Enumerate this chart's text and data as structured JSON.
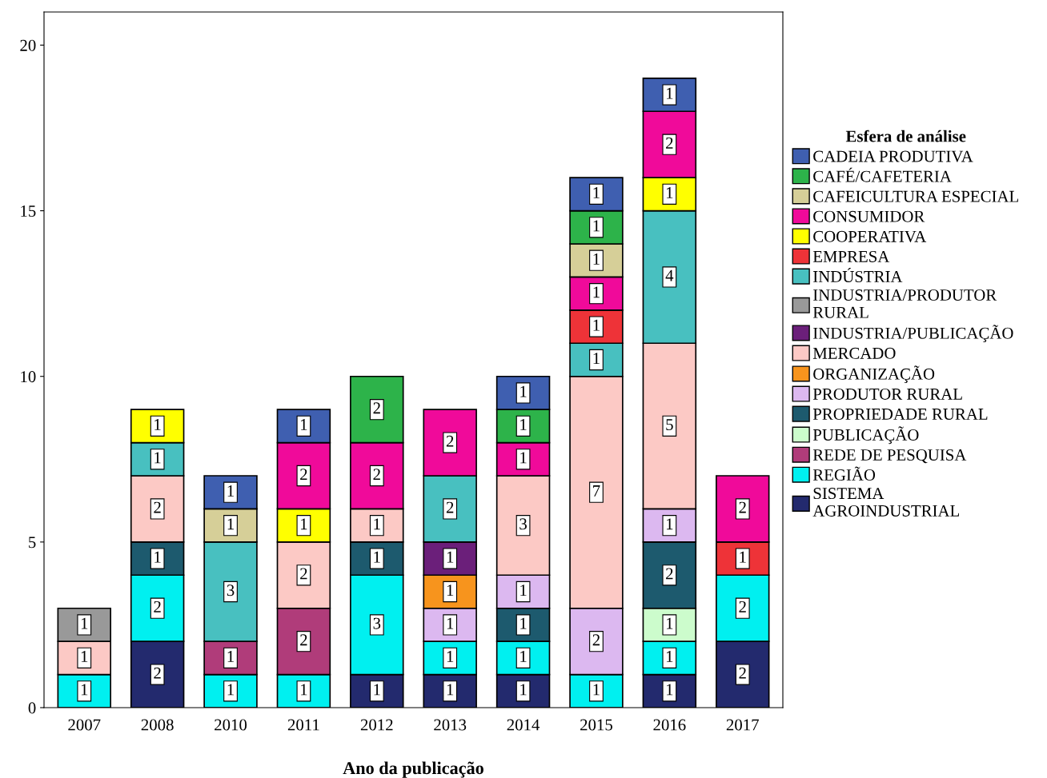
{
  "chart_data": {
    "type": "bar",
    "stacked": true,
    "xlabel": "Ano da publicação",
    "legend_title": "Esfera de análise",
    "legend": "right",
    "grid": false,
    "data_labels": true,
    "categories": [
      "2007",
      "2008",
      "2010",
      "2011",
      "2012",
      "2013",
      "2014",
      "2015",
      "2016",
      "2017"
    ],
    "ylim": [
      0,
      21
    ],
    "yticks": [
      0,
      5,
      10,
      15,
      20
    ],
    "series": [
      {
        "name": "SISTEMA AGROINDUSTRIAL",
        "color": "#232a6e",
        "values": [
          null,
          2,
          null,
          null,
          1,
          1,
          1,
          null,
          1,
          2
        ]
      },
      {
        "name": "REGIÃO",
        "color": "#00f0f0",
        "values": [
          1,
          2,
          1,
          1,
          3,
          1,
          1,
          1,
          1,
          2
        ]
      },
      {
        "name": "REDE DE PESQUISA",
        "color": "#b03c7a",
        "values": [
          null,
          null,
          1,
          2,
          null,
          null,
          null,
          null,
          null,
          null
        ]
      },
      {
        "name": "PUBLICAÇÃO",
        "color": "#ccfccc",
        "values": [
          null,
          null,
          null,
          null,
          null,
          null,
          null,
          null,
          1,
          null
        ]
      },
      {
        "name": "PROPRIEDADE RURAL",
        "color": "#1d5a6e",
        "values": [
          null,
          1,
          null,
          null,
          1,
          null,
          1,
          null,
          2,
          null
        ]
      },
      {
        "name": "PRODUTOR RURAL",
        "color": "#dcb8f0",
        "values": [
          null,
          null,
          null,
          null,
          null,
          1,
          1,
          2,
          1,
          null
        ]
      },
      {
        "name": "ORGANIZAÇÃO",
        "color": "#f7941d",
        "values": [
          null,
          null,
          null,
          null,
          null,
          1,
          null,
          null,
          null,
          null
        ]
      },
      {
        "name": "MERCADO",
        "color": "#fcc9c5",
        "values": [
          1,
          2,
          null,
          2,
          1,
          null,
          3,
          7,
          5,
          null
        ]
      },
      {
        "name": "INDUSTRIA/PUBLICAÇÃO",
        "color": "#6b1f7a",
        "values": [
          null,
          null,
          null,
          null,
          null,
          1,
          null,
          null,
          null,
          null
        ]
      },
      {
        "name": "INDUSTRIA/PRODUTOR RURAL",
        "color": "#999999",
        "values": [
          1,
          null,
          null,
          null,
          null,
          null,
          null,
          null,
          null,
          null
        ]
      },
      {
        "name": "INDÚSTRIA",
        "color": "#48c0c0",
        "values": [
          null,
          1,
          3,
          null,
          null,
          2,
          null,
          1,
          4,
          null
        ]
      },
      {
        "name": "EMPRESA",
        "color": "#ee3338",
        "values": [
          null,
          null,
          null,
          null,
          null,
          null,
          null,
          1,
          null,
          1
        ]
      },
      {
        "name": "COOPERATIVA",
        "color": "#ffff00",
        "values": [
          null,
          1,
          null,
          1,
          null,
          null,
          null,
          null,
          1,
          null
        ]
      },
      {
        "name": "CONSUMIDOR",
        "color": "#f00a9a",
        "values": [
          null,
          null,
          null,
          2,
          2,
          2,
          1,
          1,
          2,
          2
        ]
      },
      {
        "name": "CAFEICULTURA ESPECIAL",
        "color": "#d6cf98",
        "values": [
          null,
          null,
          1,
          null,
          null,
          null,
          null,
          1,
          null,
          null
        ]
      },
      {
        "name": "CAFÉ/CAFETERIA",
        "color": "#2db34a",
        "values": [
          null,
          null,
          null,
          null,
          2,
          null,
          1,
          1,
          null,
          null
        ]
      },
      {
        "name": "CADEIA PRODUTIVA",
        "color": "#3f5fb0",
        "values": [
          null,
          null,
          1,
          1,
          null,
          null,
          1,
          1,
          1,
          null
        ]
      }
    ]
  }
}
